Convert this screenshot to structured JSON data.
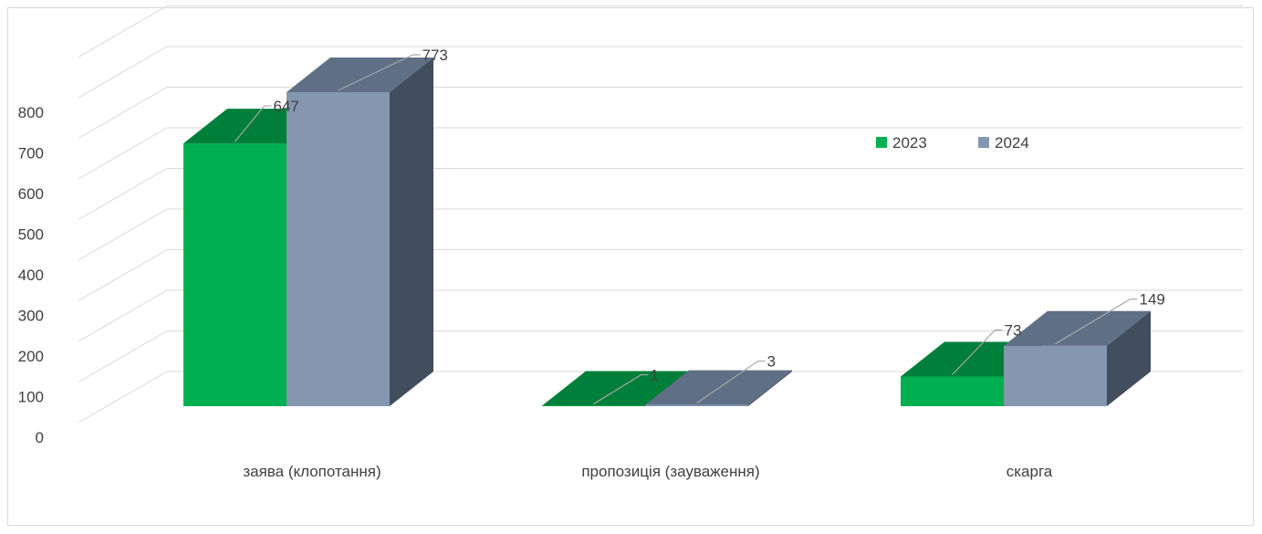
{
  "chart_data": {
    "type": "bar",
    "style": "3d-clustered-column",
    "categories": [
      "заява (клопотання)",
      "пропозиція (зауваження)",
      "скарга"
    ],
    "series": [
      {
        "name": "2023",
        "values": [
          647,
          1,
          73
        ],
        "color": "#00b050",
        "top_color": "#007f3a"
      },
      {
        "name": "2024",
        "values": [
          773,
          3,
          149
        ],
        "color": "#8496b0",
        "top_color": "#5f6f85",
        "side_color": "#424e5e"
      }
    ],
    "ylim": [
      0,
      800
    ],
    "yticks": [
      0,
      100,
      200,
      300,
      400,
      500,
      600,
      700,
      800
    ],
    "grid": true,
    "legend_position": "right"
  }
}
